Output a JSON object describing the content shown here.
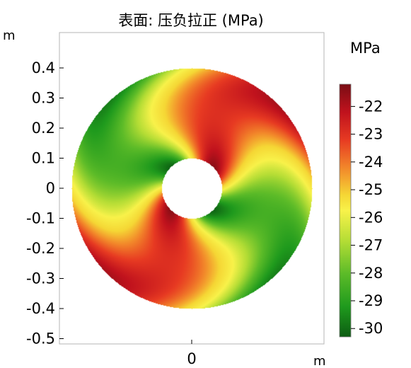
{
  "title": "表面: 压负拉正 (MPa)",
  "x_unit": "m",
  "y_unit": "m",
  "colorbar_unit": "MPa",
  "chart_data": {
    "type": "heatmap",
    "title": "表面: 压负拉正 (MPa)",
    "xlabel": "m",
    "ylabel": "m",
    "x_ticks": [
      {
        "value": 0,
        "label": "0"
      }
    ],
    "y_ticks": [
      {
        "value": 0.4,
        "label": "0.4"
      },
      {
        "value": 0.3,
        "label": "0.3"
      },
      {
        "value": 0.2,
        "label": "0.2"
      },
      {
        "value": 0.1,
        "label": "0.1"
      },
      {
        "value": 0,
        "label": "0"
      },
      {
        "value": -0.1,
        "label": "-0.1"
      },
      {
        "value": -0.2,
        "label": "-0.2"
      },
      {
        "value": -0.3,
        "label": "-0.3"
      },
      {
        "value": -0.4,
        "label": "-0.4"
      },
      {
        "value": -0.5,
        "label": "-0.5"
      }
    ],
    "xlim": [
      -0.45,
      0.45
    ],
    "ylim": [
      -0.52,
      0.52
    ],
    "grid": false,
    "domain": {
      "shape": "annulus",
      "center": [
        0,
        0
      ],
      "inner_radius": 0.1,
      "outer_radius": 0.4
    },
    "field": {
      "min": -30.2,
      "max": -21.4,
      "description_values": "maximum about -21.5 near inner edge at 45°/225° and outer edge at 45°/225°; minimum about -30 at outer edge at 135°/315°"
    },
    "colorbar": {
      "label": "MPa",
      "range": [
        -30.3,
        -21.2
      ],
      "ticks": [
        -22,
        -23,
        -24,
        -25,
        -26,
        -27,
        -28,
        -29,
        -30
      ],
      "tick_labels": [
        "-22",
        "-23",
        "-24",
        "-25",
        "-26",
        "-27",
        "-28",
        "-29",
        "-30"
      ],
      "colormap": [
        "#7a0d14",
        "#c0121d",
        "#e73a22",
        "#f2862a",
        "#f5d735",
        "#f8f24a",
        "#b4dd35",
        "#5cbb28",
        "#1f9a1d",
        "#0c5c12"
      ]
    }
  }
}
